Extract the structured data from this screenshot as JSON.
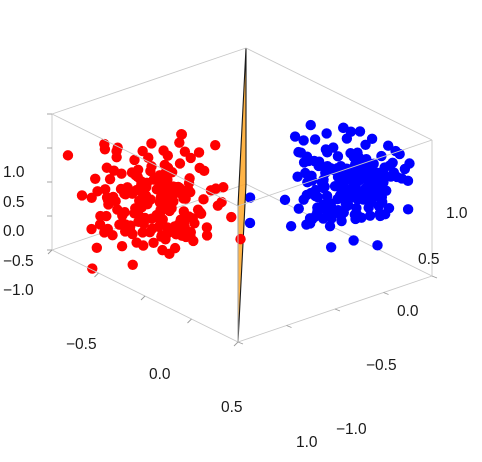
{
  "chart_data": {
    "type": "scatter3d",
    "title": "",
    "xlabel": "",
    "ylabel": "",
    "zlabel": "",
    "x_ticks": [
      "−0.5",
      "0.0",
      "0.5",
      "1.0"
    ],
    "y_ticks": [
      "1.0",
      "0.5",
      "0.0",
      "−0.5",
      "−1.0"
    ],
    "z_ticks": [
      "1.0",
      "0.5",
      "0.0",
      "−0.5",
      "−1.0"
    ],
    "x_range": [
      -1,
      1
    ],
    "y_range": [
      -1,
      1
    ],
    "z_range": [
      -1,
      1
    ],
    "grid": false,
    "colors": {
      "class_a": "#ff0000",
      "class_b": "#0000ff",
      "plane_fill": "#ffa726",
      "plane_edge": "#1a1a1a"
    },
    "series": [
      {
        "color_key": "class_a",
        "center": [
          -0.45,
          -0.45,
          -0.2
        ],
        "spread": [
          0.22,
          0.25,
          0.35
        ],
        "count": 200
      },
      {
        "color_key": "class_b",
        "center": [
          0.55,
          0.55,
          0.3
        ],
        "spread": [
          0.2,
          0.22,
          0.3
        ],
        "count": 200
      }
    ],
    "plane": {
      "description": "separating plane x + y = 0",
      "corners_xyz": [
        [
          -1,
          1,
          -1
        ],
        [
          1,
          -1,
          -1
        ],
        [
          1,
          -1,
          1
        ],
        [
          -1,
          1,
          1
        ]
      ]
    }
  }
}
